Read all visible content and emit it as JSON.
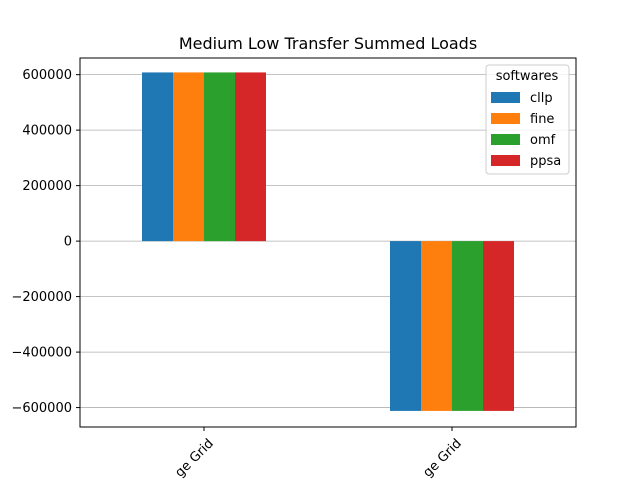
{
  "chart_data": {
    "type": "bar",
    "title": "Medium Low Transfer Summed Loads",
    "categories": [
      "ge Grid",
      "ge Grid"
    ],
    "series": [
      {
        "name": "cllp",
        "values": [
          608000,
          -612000
        ]
      },
      {
        "name": "fine",
        "values": [
          608000,
          -612000
        ]
      },
      {
        "name": "omf",
        "values": [
          608000,
          -612000
        ]
      },
      {
        "name": "ppsa",
        "values": [
          608000,
          -612000
        ]
      }
    ],
    "xlabel": "",
    "ylabel": "",
    "ylim": [
      -670000,
      660000
    ],
    "yticks": [
      -600000,
      -400000,
      -200000,
      0,
      200000,
      400000,
      600000
    ],
    "ytick_labels": [
      "−600000",
      "−400000",
      "−200000",
      "0",
      "200000",
      "400000",
      "600000"
    ],
    "grid": "horizontal",
    "legend": {
      "title": "softwares",
      "placement": "top-right"
    },
    "colors": {
      "cllp": "#1f77b4",
      "fine": "#ff7f0e",
      "omf": "#2ca02c",
      "ppsa": "#d62728"
    }
  }
}
